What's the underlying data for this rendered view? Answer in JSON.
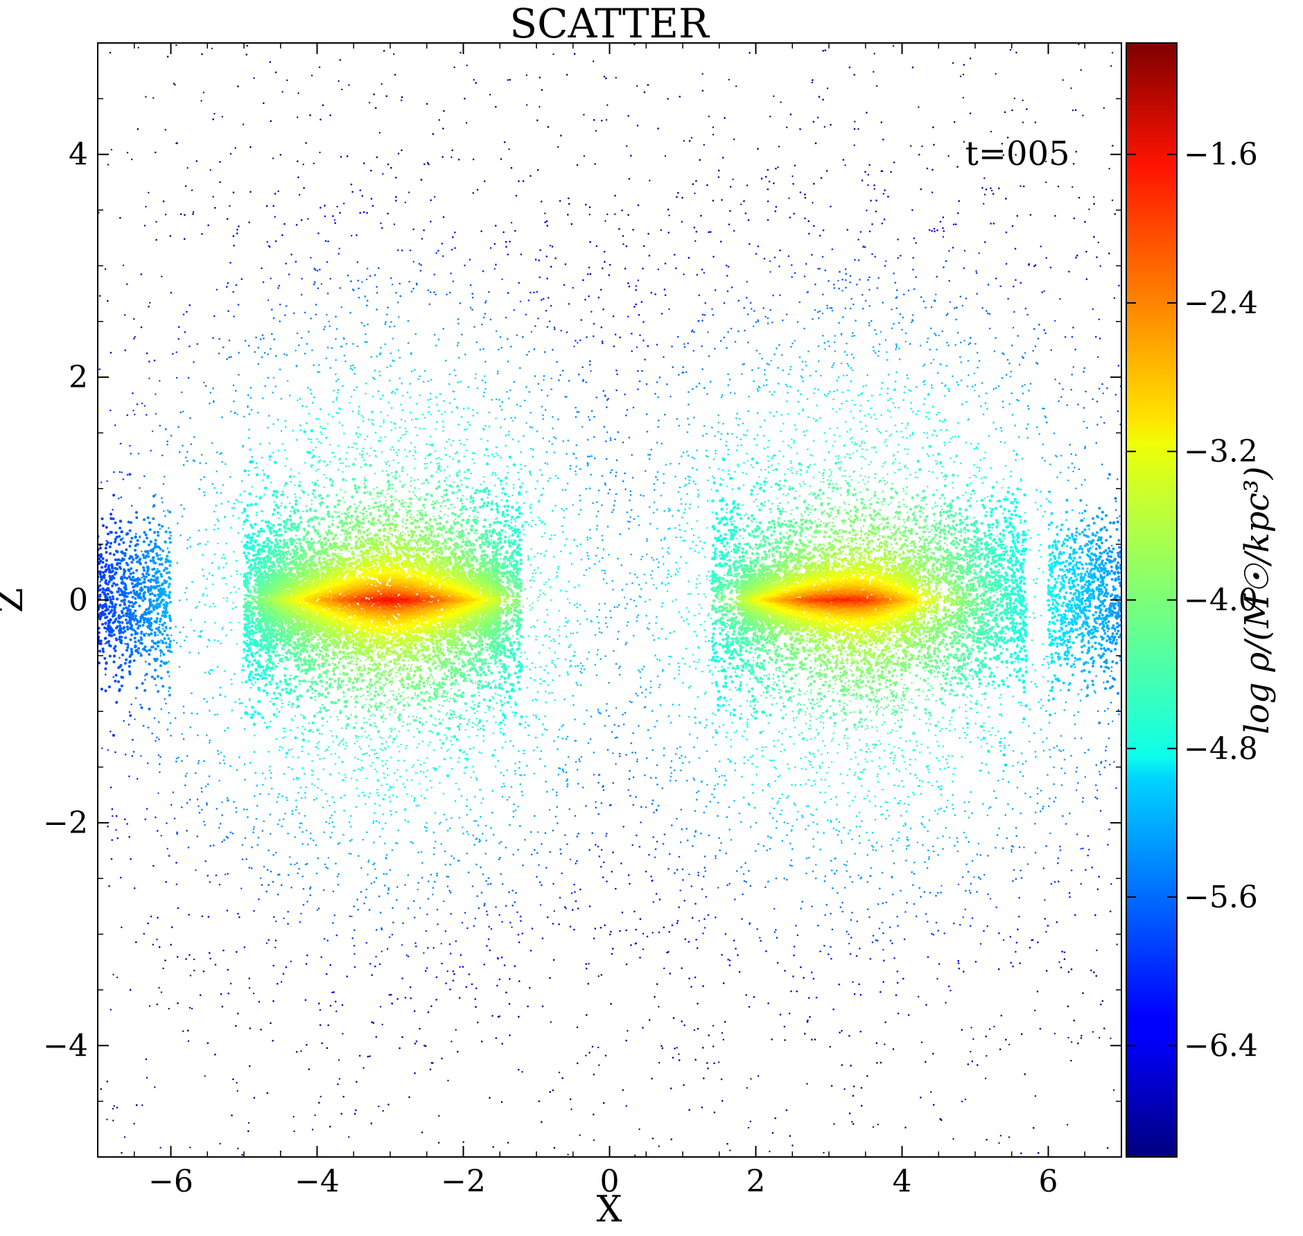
{
  "chart_data": {
    "type": "scatter",
    "title": "SCATTER",
    "xlabel": "X",
    "ylabel": "Z",
    "xlim": [
      -7,
      7
    ],
    "ylim": [
      -5,
      5
    ],
    "xticks": [
      -6,
      -4,
      -2,
      0,
      2,
      4,
      6
    ],
    "yticks": [
      -4,
      -2,
      0,
      2,
      4
    ],
    "xtick_labels": [
      "−6",
      "−4",
      "−2",
      "0",
      "2",
      "4",
      "6"
    ],
    "ytick_labels": [
      "−4",
      "−2",
      "0",
      "2",
      "4"
    ],
    "annotation": "t=005",
    "grid": false,
    "colorbar": {
      "label": "log ρ/(M☉/kpc³)",
      "range": [
        -7.0,
        -1.0
      ],
      "ticks": [
        -1.6,
        -2.4,
        -3.2,
        -4.0,
        -4.8,
        -5.6,
        -6.4
      ],
      "tick_labels": [
        "−1.6",
        "−2.4",
        "−3.2",
        "−4.0",
        "−4.8",
        "−5.6",
        "−6.4"
      ],
      "colormap": "jet"
    },
    "density_structures": [
      {
        "name": "left-galaxy",
        "x_range": [
          -4.8,
          -1.4
        ],
        "z_range": [
          -0.45,
          0.45
        ],
        "peak_x": -2.8,
        "peak_log_rho": -1.8
      },
      {
        "name": "right-galaxy",
        "x_range": [
          1.6,
          5.6
        ],
        "z_range": [
          -0.4,
          0.4
        ],
        "peak_x": 2.4,
        "peak_log_rho": -1.7
      }
    ]
  }
}
